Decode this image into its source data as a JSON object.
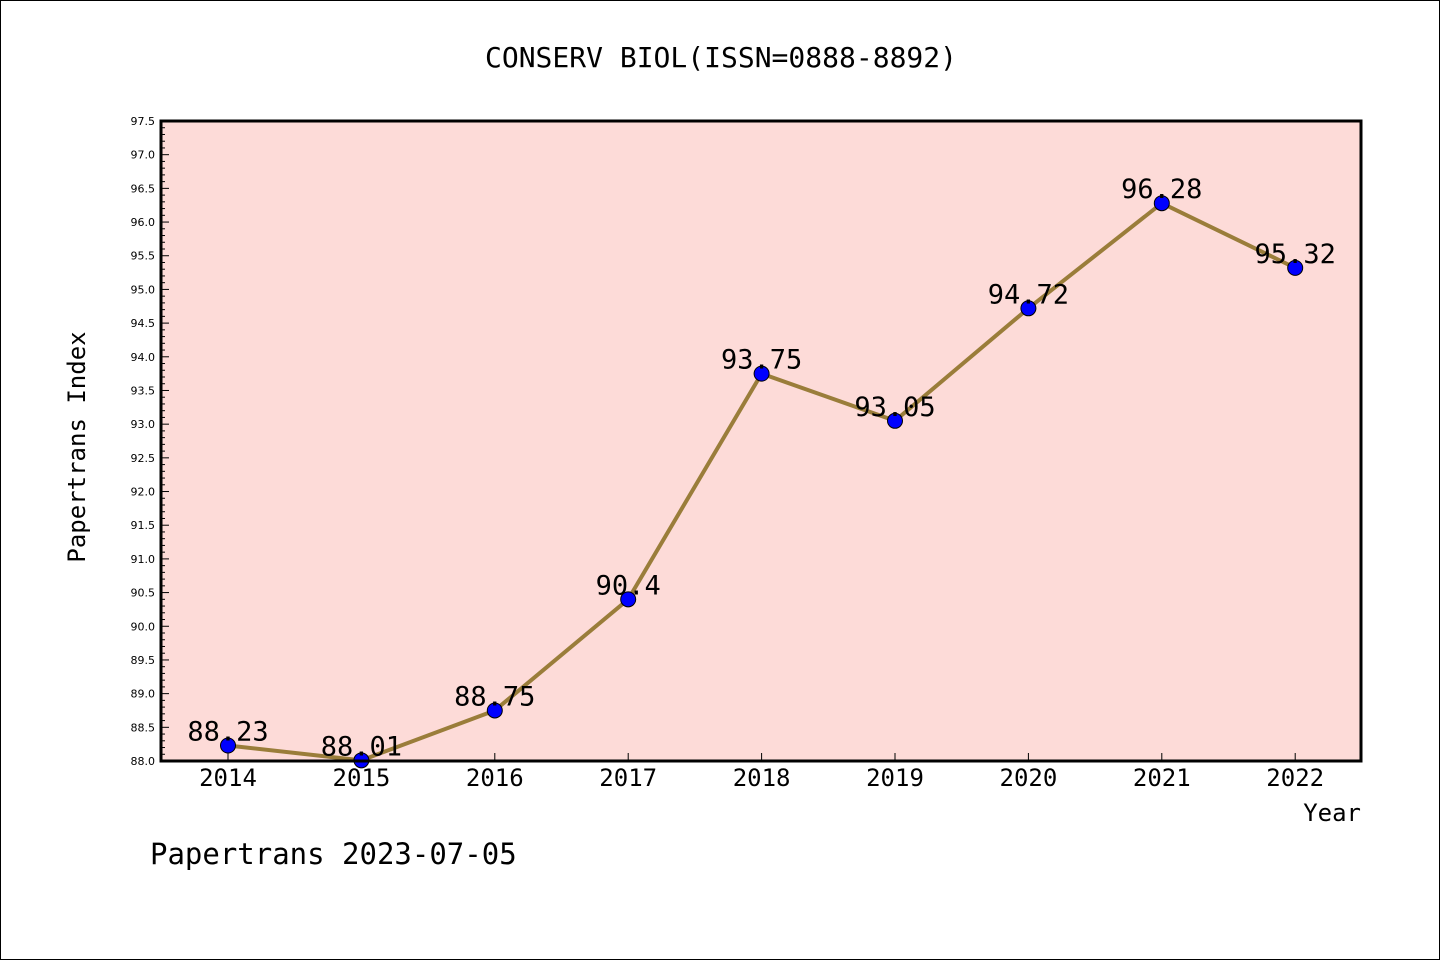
{
  "chart_data": {
    "type": "line",
    "title": "CONSERV BIOL(ISSN=0888-8892)",
    "xlabel": "Year",
    "ylabel": "Papertrans Index",
    "categories": [
      "2014",
      "2015",
      "2016",
      "2017",
      "2018",
      "2019",
      "2020",
      "2021",
      "2022"
    ],
    "series": [
      {
        "values": [
          88.23,
          88.01,
          88.75,
          90.4,
          93.75,
          93.05,
          94.72,
          96.28,
          95.32
        ],
        "labels": [
          "88.23",
          "88.01",
          "88.75",
          "90.4",
          "93.75",
          "93.05",
          "94.72",
          "96.28",
          "95.32"
        ]
      }
    ],
    "ylim": [
      88.0,
      97.5
    ],
    "yticks": [
      "88.0",
      "88.5",
      "89.0",
      "89.5",
      "90.0",
      "90.5",
      "91.0",
      "91.5",
      "92.0",
      "92.5",
      "93.0",
      "93.5",
      "94.0",
      "94.5",
      "95.0",
      "95.5",
      "96.0",
      "96.5",
      "97.0",
      "97.5"
    ],
    "grid": false,
    "line_color": "#9a7d3a",
    "marker_color": "#0000ff",
    "plot_background": "#fddbd8"
  },
  "footer": "Papertrans 2023-07-05"
}
